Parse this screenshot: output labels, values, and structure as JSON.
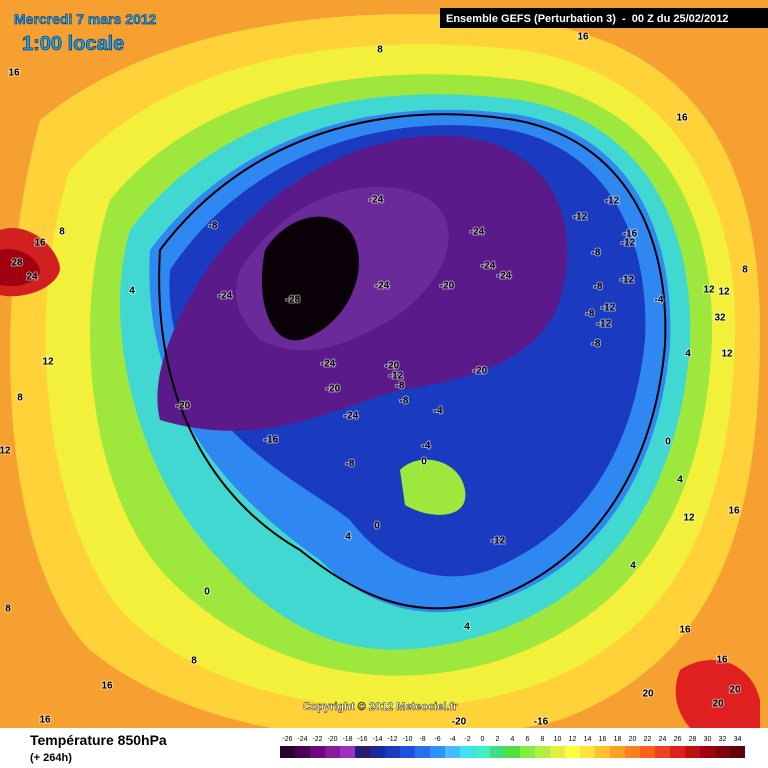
{
  "header": {
    "date": "Mercredi 7 mars 2012",
    "time": "1:00 locale",
    "run": "Ensemble GEFS (Perturbation 3)  -  00 Z du 25/02/2012"
  },
  "footer": {
    "title": "Température 850hPa",
    "subtitle": "(+ 264h)",
    "copyright": "Copyright © 2012 Meteociel.fr"
  },
  "contour_labels": [
    "8",
    "16",
    "16",
    "16",
    "16",
    "28",
    "24",
    "8",
    "4",
    "12",
    "-8",
    "-24",
    "-24",
    "-24",
    "-24",
    "-12",
    "-12",
    "-16",
    "-12",
    "-8",
    "-12",
    "-8",
    "-12",
    "-8",
    "-12",
    "-8",
    "-4",
    "12",
    "12",
    "8",
    "32",
    "12",
    "4",
    "-24",
    "-28",
    "-24",
    "-20",
    "-24",
    "-20",
    "-12",
    "-8",
    "-20",
    "-20",
    "-8",
    "-4",
    "-20",
    "-24",
    "-16",
    "-4",
    "0",
    "-8",
    "0",
    "4",
    "12",
    "16",
    "0",
    "4",
    "-12",
    "4",
    "16",
    "4",
    "8",
    "16",
    "16",
    "16",
    "20",
    "20",
    "20",
    "12",
    "8",
    "-16",
    "-20",
    "0",
    "8"
  ],
  "colorbar": {
    "ticks": [
      -26,
      -24,
      -22,
      -20,
      -18,
      -16,
      -14,
      -12,
      -10,
      -8,
      -6,
      -4,
      -2,
      0,
      2,
      4,
      6,
      8,
      10,
      12,
      14,
      16,
      18,
      20,
      22,
      24,
      26,
      28,
      30,
      32,
      34
    ],
    "colors": [
      "#2b0030",
      "#4a0050",
      "#6a0a7a",
      "#8a1a9a",
      "#a030c0",
      "#2a1a70",
      "#1a2a9a",
      "#1a3ac0",
      "#2050e0",
      "#2a70f0",
      "#3090ff",
      "#40c0ff",
      "#40e0f0",
      "#40f0c0",
      "#40e080",
      "#50e040",
      "#80f040",
      "#b0f040",
      "#e0f040",
      "#ffff40",
      "#ffe040",
      "#ffc030",
      "#ffa020",
      "#ff8020",
      "#ff6020",
      "#f04020",
      "#e02020",
      "#c01010",
      "#a00010",
      "#800010",
      "#600010"
    ]
  }
}
